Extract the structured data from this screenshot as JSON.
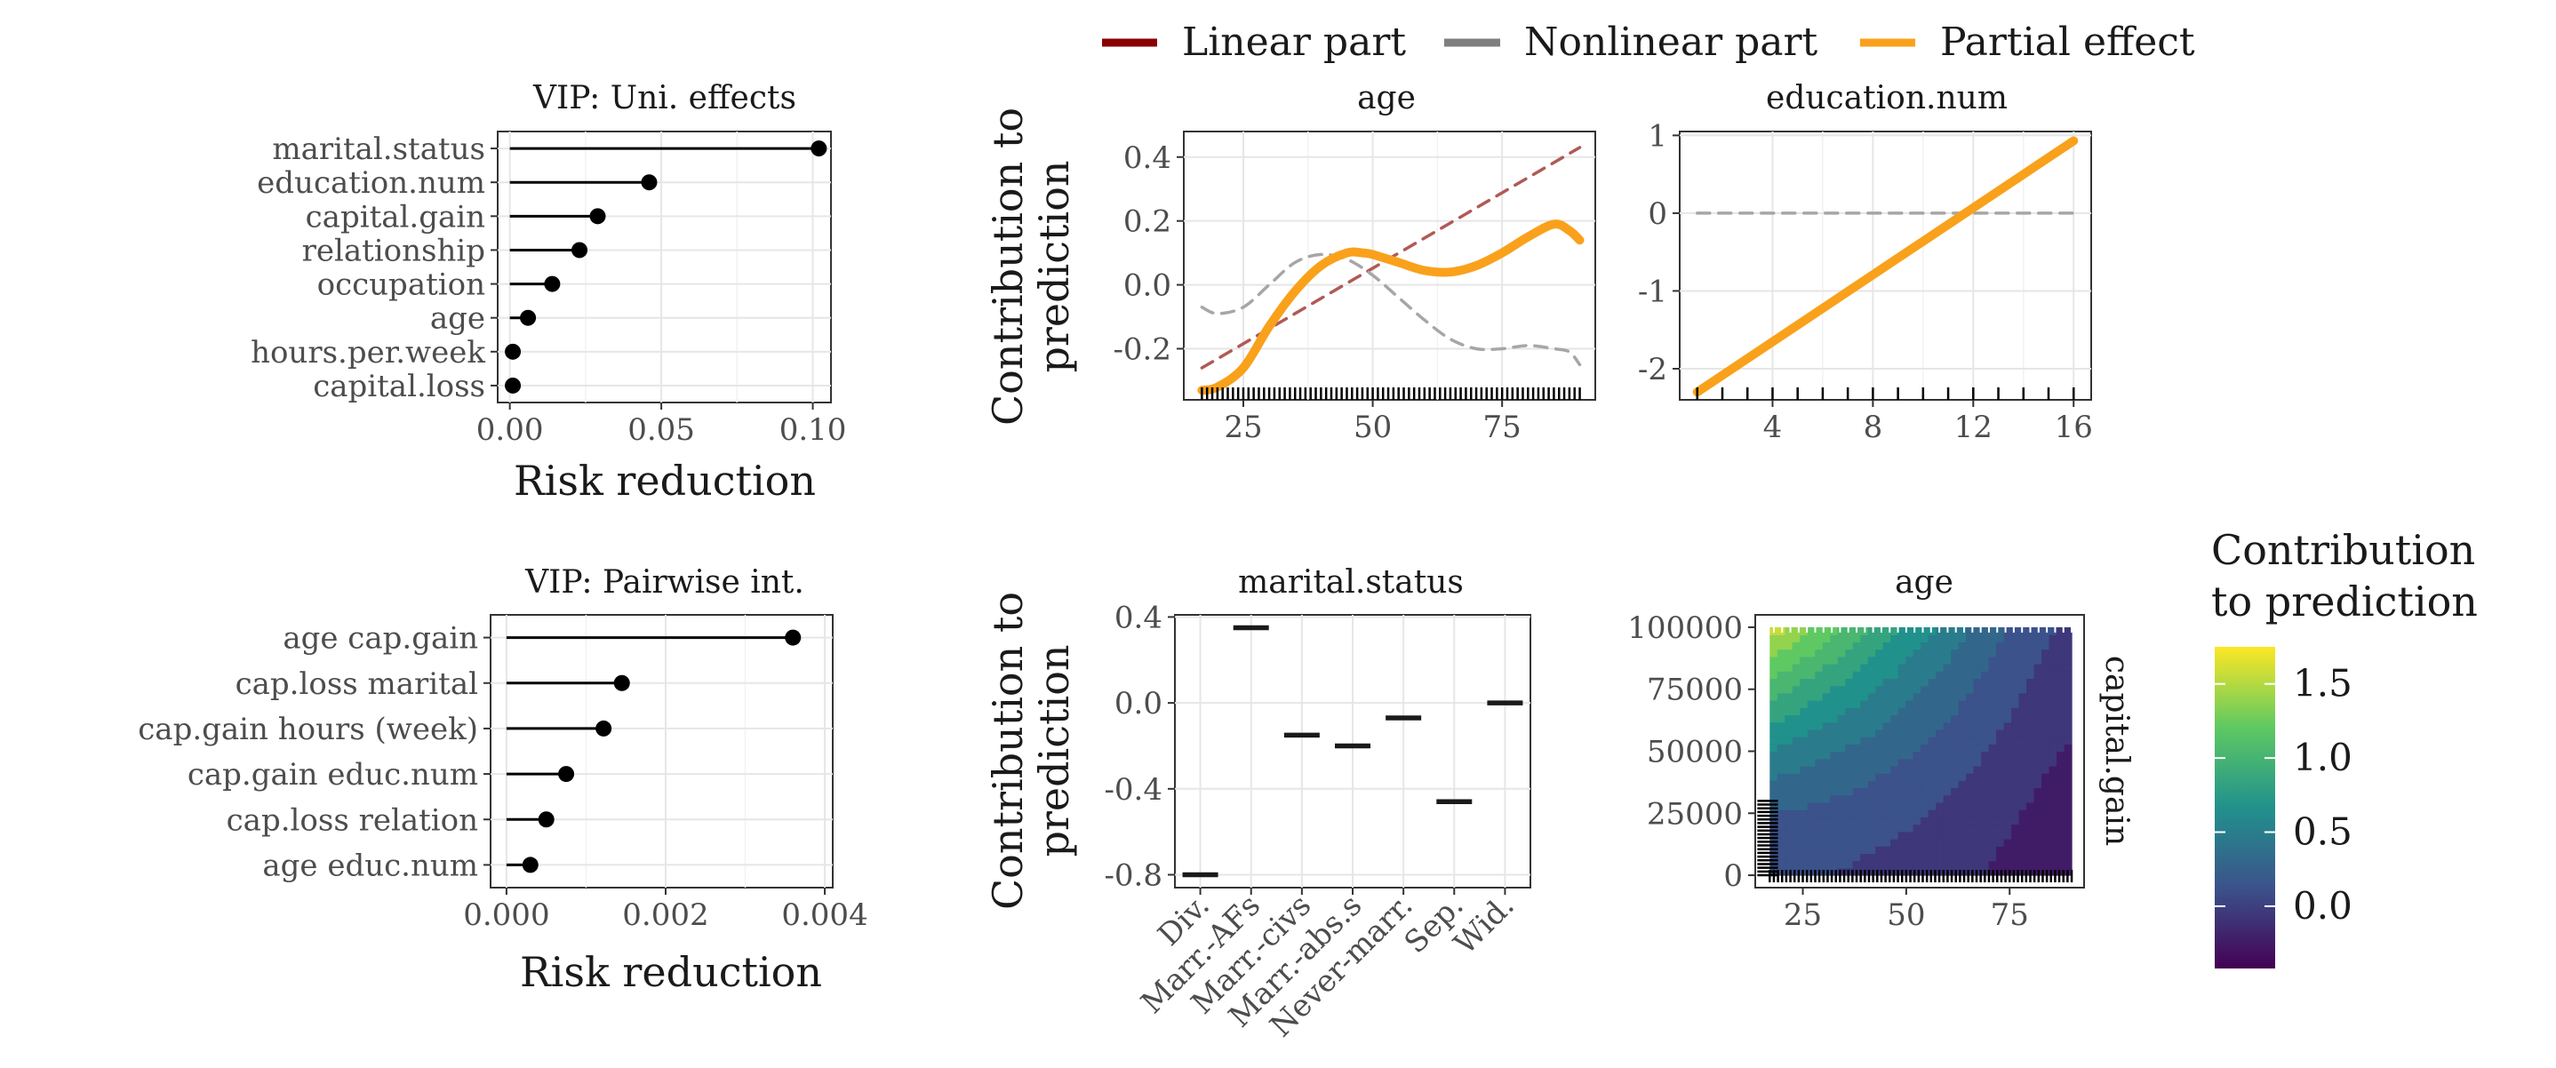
{
  "legend": {
    "items": [
      {
        "label": "Linear part",
        "color": "#8B0000"
      },
      {
        "label": "Nonlinear part",
        "color": "#7F7F7F"
      },
      {
        "label": "Partial effect",
        "color": "#F9A11B"
      }
    ]
  },
  "colorbar": {
    "title_line1": "Contribution",
    "title_line2": "to prediction",
    "ticks": [
      "1.5",
      "1.0",
      "0.5",
      "0.0"
    ],
    "tick_values": [
      1.5,
      1.0,
      0.5,
      0.0
    ],
    "range": [
      -0.42,
      1.75
    ],
    "palette": "viridis"
  },
  "chart_data": [
    {
      "id": "vip_uni",
      "type": "lollipop",
      "title": "VIP: Uni. effects",
      "xlabel": "Risk reduction",
      "categories": [
        "marital.status",
        "education.num",
        "capital.gain",
        "relationship",
        "occupation",
        "age",
        "hours.per.week",
        "capital.loss"
      ],
      "values": [
        0.102,
        0.046,
        0.029,
        0.023,
        0.014,
        0.006,
        0.001,
        0.001
      ],
      "xticks": [
        "0.00",
        "0.05",
        "0.10"
      ],
      "xtick_values": [
        0.0,
        0.05,
        0.1
      ],
      "xlim": [
        -0.004,
        0.106
      ],
      "grid": true
    },
    {
      "id": "vip_pair",
      "type": "lollipop",
      "title": "VIP: Pairwise int.",
      "xlabel": "Risk reduction",
      "categories": [
        "age cap.gain",
        "cap.loss marital",
        "cap.gain hours (week)",
        "cap.gain educ.num",
        "cap.loss relation",
        "age educ.num"
      ],
      "values": [
        0.0036,
        0.00145,
        0.00122,
        0.00075,
        0.0005,
        0.0003
      ],
      "xticks": [
        "0.000",
        "0.002",
        "0.004"
      ],
      "xtick_values": [
        0.0,
        0.002,
        0.004
      ],
      "xlim": [
        -0.0002,
        0.0041
      ],
      "grid": true
    },
    {
      "id": "age_effect",
      "type": "line",
      "title": "age",
      "ylabel_line1": "Contribution to",
      "ylabel_line2": "prediction",
      "xlim": [
        13.5,
        93
      ],
      "ylim": [
        -0.36,
        0.48
      ],
      "xticks": [
        "25",
        "50",
        "75"
      ],
      "xtick_values": [
        25,
        50,
        75
      ],
      "yticks": [
        "0.4",
        "0.2",
        "0.0",
        "-0.2"
      ],
      "ytick_values": [
        0.4,
        0.2,
        0.0,
        -0.2
      ],
      "series": [
        {
          "legend_index": 0,
          "style": "dashed",
          "x": [
            17,
            90
          ],
          "y": [
            -0.26,
            0.43
          ]
        },
        {
          "legend_index": 1,
          "style": "dashed",
          "x": [
            17,
            20,
            25,
            30,
            35,
            40,
            45,
            50,
            55,
            60,
            65,
            70,
            75,
            80,
            85,
            88,
            90
          ],
          "y": [
            -0.07,
            -0.09,
            -0.07,
            0.0,
            0.07,
            0.095,
            0.08,
            0.03,
            -0.04,
            -0.11,
            -0.17,
            -0.2,
            -0.2,
            -0.19,
            -0.2,
            -0.21,
            -0.25
          ]
        },
        {
          "legend_index": 2,
          "style": "solid",
          "x": [
            17,
            20,
            25,
            30,
            35,
            40,
            45,
            48,
            50,
            55,
            60,
            65,
            70,
            75,
            80,
            85,
            88,
            90
          ],
          "y": [
            -0.33,
            -0.32,
            -0.26,
            -0.13,
            -0.02,
            0.06,
            0.1,
            0.1,
            0.095,
            0.07,
            0.045,
            0.04,
            0.06,
            0.1,
            0.15,
            0.19,
            0.17,
            0.14
          ]
        }
      ],
      "rug": true,
      "rug_range": [
        17,
        90
      ]
    },
    {
      "id": "education_effect",
      "type": "line",
      "title": "education.num",
      "xlim": [
        0.3,
        16.7
      ],
      "ylim": [
        -2.4,
        1.05
      ],
      "xticks": [
        "4",
        "8",
        "12",
        "16"
      ],
      "xtick_values": [
        4,
        8,
        12,
        16
      ],
      "yticks": [
        "1",
        "0",
        "-1",
        "-2"
      ],
      "ytick_values": [
        1,
        0,
        -1,
        -2
      ],
      "series": [
        {
          "legend_index": 1,
          "style": "dashed",
          "x": [
            1,
            16
          ],
          "y": [
            0,
            0
          ]
        },
        {
          "legend_index": 2,
          "style": "solid",
          "x": [
            1,
            16
          ],
          "y": [
            -2.3,
            0.93
          ]
        }
      ],
      "rug": true,
      "rug_values": [
        1,
        2,
        3,
        4,
        5,
        6,
        7,
        8,
        9,
        10,
        11,
        12,
        13,
        14,
        15,
        16
      ]
    },
    {
      "id": "marital_effect",
      "type": "bar",
      "subtype": "crossbar",
      "title": "marital.status",
      "ylabel_line1": "Contribution to",
      "ylabel_line2": "prediction",
      "categories": [
        "Div.",
        "Marr.-AFs",
        "Marr.-civs",
        "Marr.-abs.s",
        "Never-marr.",
        "Sep.",
        "Wid."
      ],
      "values": [
        -0.8,
        0.35,
        -0.15,
        -0.2,
        -0.07,
        -0.46,
        0.0
      ],
      "ylim": [
        -0.86,
        0.41
      ],
      "yticks": [
        "0.4",
        "0.0",
        "-0.4",
        "-0.8"
      ],
      "ytick_values": [
        0.4,
        0.0,
        -0.4,
        -0.8
      ]
    },
    {
      "id": "age_capgain_interaction",
      "type": "heatmap",
      "title": "age",
      "ylabel_right": "capital.gain",
      "xlim": [
        13.5,
        93
      ],
      "ylim": [
        -5000,
        105000
      ],
      "xticks": [
        "25",
        "50",
        "75"
      ],
      "xtick_values": [
        25,
        50,
        75
      ],
      "yticks": [
        "100000",
        "75000",
        "50000",
        "25000",
        "0"
      ],
      "ytick_values": [
        100000,
        75000,
        50000,
        25000,
        0
      ],
      "value_range": [
        -0.42,
        1.75
      ]
    }
  ]
}
